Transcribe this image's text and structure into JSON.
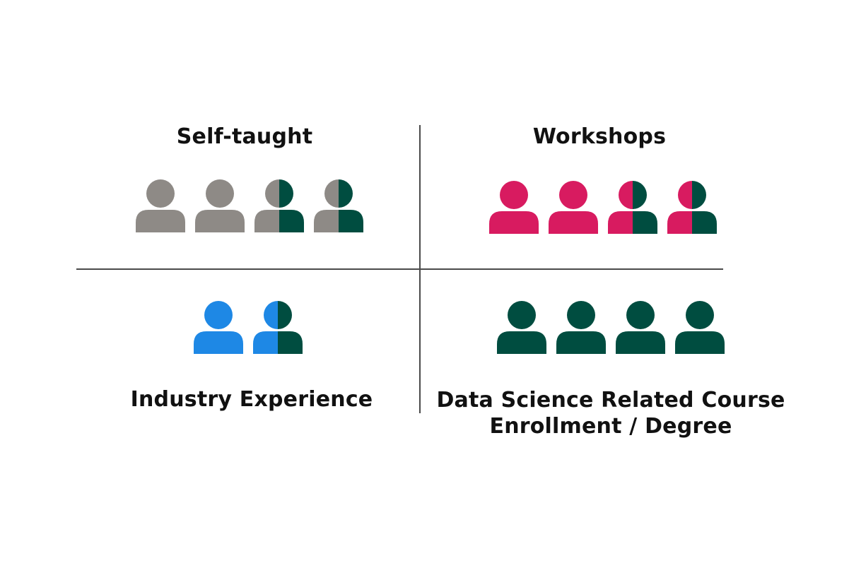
{
  "colors": {
    "grey": "#8e8a86",
    "pink": "#d81b60",
    "blue": "#1e88e5",
    "green": "#004d40"
  },
  "quadrants": {
    "self_taught": {
      "title": "Self-taught",
      "icons": [
        {
          "left": "grey",
          "right": "grey"
        },
        {
          "left": "grey",
          "right": "grey"
        },
        {
          "left": "grey",
          "right": "green"
        },
        {
          "left": "grey",
          "right": "green"
        }
      ]
    },
    "workshops": {
      "title": "Workshops",
      "icons": [
        {
          "left": "pink",
          "right": "pink"
        },
        {
          "left": "pink",
          "right": "pink"
        },
        {
          "left": "pink",
          "right": "green"
        },
        {
          "left": "pink",
          "right": "green"
        }
      ]
    },
    "industry": {
      "title": "Industry Experience",
      "icons": [
        {
          "left": "blue",
          "right": "blue"
        },
        {
          "left": "blue",
          "right": "green"
        }
      ]
    },
    "degree": {
      "title_line1": "Data Science Related Course",
      "title_line2": "Enrollment / Degree",
      "icons": [
        {
          "left": "green",
          "right": "green"
        },
        {
          "left": "green",
          "right": "green"
        },
        {
          "left": "green",
          "right": "green"
        },
        {
          "left": "green",
          "right": "green"
        }
      ]
    }
  }
}
